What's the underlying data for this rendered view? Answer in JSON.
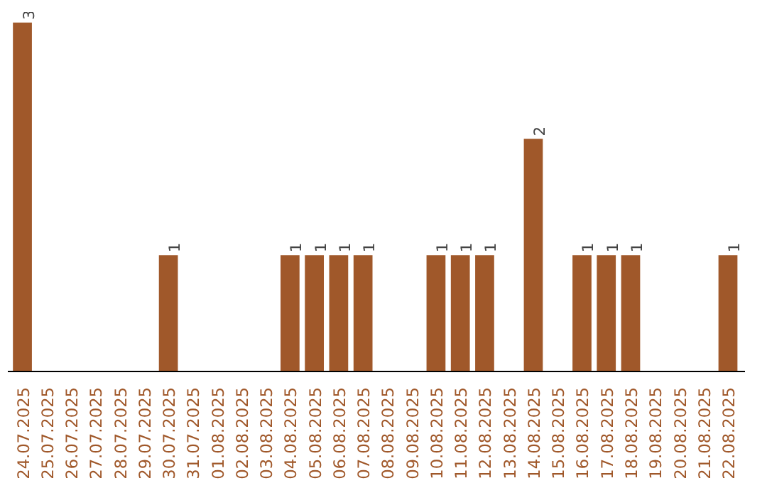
{
  "chart_data": {
    "type": "bar",
    "categories": [
      "24.07.2025",
      "25.07.2025",
      "26.07.2025",
      "27.07.2025",
      "28.07.2025",
      "29.07.2025",
      "30.07.2025",
      "31.07.2025",
      "01.08.2025",
      "02.08.2025",
      "03.08.2025",
      "04.08.2025",
      "05.08.2025",
      "06.08.2025",
      "07.08.2025",
      "08.08.2025",
      "09.08.2025",
      "10.08.2025",
      "11.08.2025",
      "12.08.2025",
      "13.08.2025",
      "14.08.2025",
      "15.08.2025",
      "16.08.2025",
      "17.08.2025",
      "18.08.2025",
      "19.08.2025",
      "20.08.2025",
      "21.08.2025",
      "22.08.2025"
    ],
    "values": [
      3,
      0,
      0,
      0,
      0,
      0,
      1,
      0,
      0,
      0,
      0,
      1,
      1,
      1,
      1,
      0,
      0,
      1,
      1,
      1,
      0,
      2,
      0,
      1,
      1,
      1,
      0,
      0,
      0,
      1
    ],
    "value_labels": [
      "3",
      null,
      null,
      null,
      null,
      null,
      "1",
      null,
      null,
      null,
      null,
      "1",
      "1",
      "1",
      "1",
      null,
      null,
      "1",
      "1",
      "1",
      null,
      "2",
      null,
      "1",
      "1",
      "1",
      null,
      null,
      null,
      "1"
    ],
    "color": "#a0582a",
    "grid": false
  }
}
